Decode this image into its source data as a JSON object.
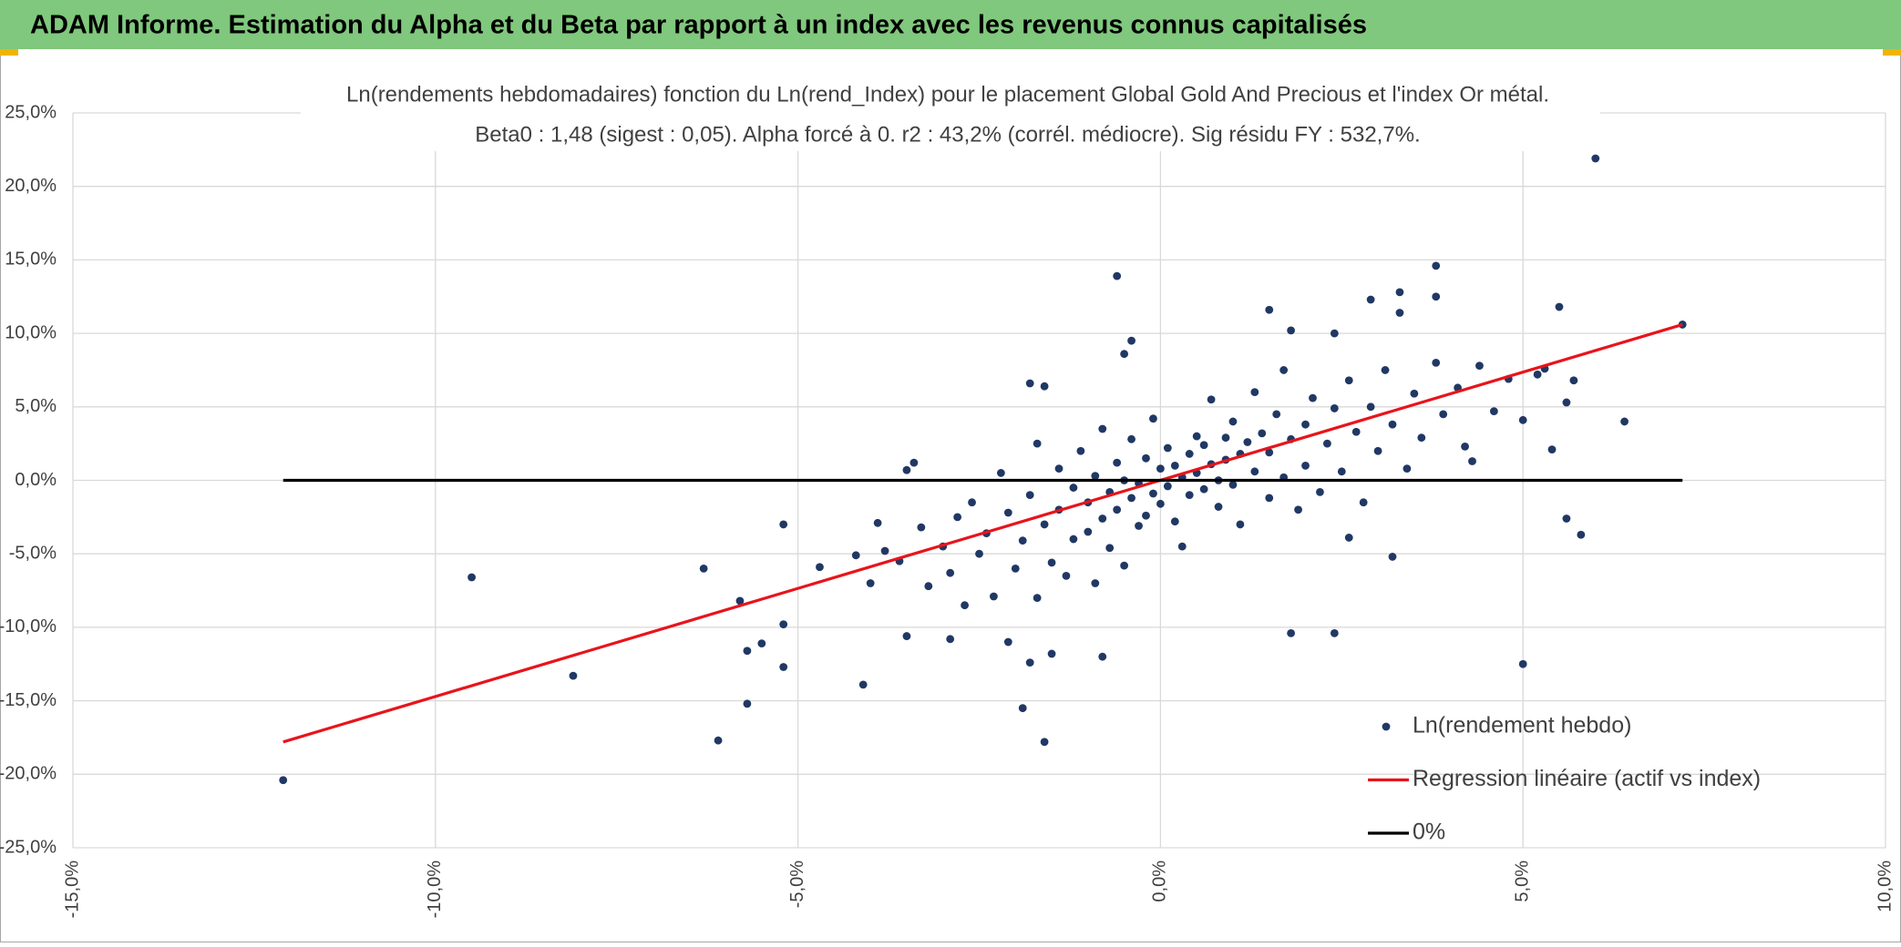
{
  "header": {
    "title": "ADAM Informe. Estimation du Alpha et du Beta par rapport à un index avec les revenus connus capitalisés"
  },
  "chart_data": {
    "type": "scatter",
    "title": "Ln(rendements hebdomadaires) fonction du Ln(rend_Index) pour le placement Global Gold And Precious  et l'index Or métal.",
    "subtitle": "Beta0 : 1,48 (sigest : 0,05). Alpha forcé à 0. r2 : 43,2% (corrél. médiocre). Sig résidu FY : 532,7%.",
    "xlim": [
      -15,
      10
    ],
    "xticks": [
      {
        "value": -15,
        "label": "-15,0%"
      },
      {
        "value": -10,
        "label": "-10,0%"
      },
      {
        "value": -5,
        "label": "-5,0%"
      },
      {
        "value": 0,
        "label": "0,0%"
      },
      {
        "value": 5,
        "label": "5,0%"
      },
      {
        "value": 10,
        "label": "10,0%"
      }
    ],
    "ylim": [
      -25,
      25
    ],
    "yticks": [
      {
        "value": -25,
        "label": "-25,0%"
      },
      {
        "value": -20,
        "label": "-20,0%"
      },
      {
        "value": -15,
        "label": "-15,0%"
      },
      {
        "value": -10,
        "label": "-10,0%"
      },
      {
        "value": -5,
        "label": "-5,0%"
      },
      {
        "value": 0,
        "label": "0,0%"
      },
      {
        "value": 5,
        "label": "5,0%"
      },
      {
        "value": 10,
        "label": "10,0%"
      },
      {
        "value": 15,
        "label": "15,0%"
      },
      {
        "value": 20,
        "label": "20,0%"
      },
      {
        "value": 25,
        "label": "25,0%"
      }
    ],
    "grid": true,
    "legend": "bottom-right",
    "series": [
      {
        "name": "Ln(rendement hebdo)",
        "color": "#203864",
        "style": "markers",
        "x": [
          -12.1,
          -9.5,
          -8.1,
          -6.3,
          -6.1,
          -5.8,
          -5.7,
          -5.7,
          -5.5,
          -5.2,
          -5.2,
          -5.2,
          -4.7,
          -4.1,
          -4.0,
          -3.5,
          -3.4,
          -3.5,
          -2.9,
          -2.1,
          -1.9,
          -1.8,
          -1.6,
          -1.8,
          -1.6,
          -1.5,
          -0.8,
          -0.6,
          -0.4,
          -0.5,
          1.5,
          1.8,
          2.4,
          2.4,
          1.8,
          2.9,
          3.3,
          3.3,
          3.8,
          3.8,
          5.5,
          6.0,
          7.2,
          6.4,
          5.8,
          5.6,
          5.0,
          5.4,
          4.3,
          3.2,
          2.6,
          -3.8,
          -3.6,
          -3.3,
          -3.2,
          -3.0,
          -2.9,
          -2.8,
          -2.7,
          -2.6,
          -2.5,
          -2.4,
          -2.3,
          -2.2,
          -2.1,
          -2.0,
          -1.9,
          -1.8,
          -1.7,
          -1.7,
          -1.6,
          -1.5,
          -1.4,
          -1.4,
          -1.3,
          -1.2,
          -1.2,
          -1.1,
          -1.0,
          -1.0,
          -0.9,
          -0.9,
          -0.8,
          -0.8,
          -0.7,
          -0.7,
          -0.6,
          -0.6,
          -0.5,
          -0.5,
          -0.4,
          -0.4,
          -0.3,
          -0.3,
          -0.2,
          -0.2,
          -0.1,
          -0.1,
          0.0,
          0.0,
          0.1,
          0.1,
          0.2,
          0.2,
          0.3,
          0.3,
          0.4,
          0.4,
          0.5,
          0.5,
          0.6,
          0.6,
          0.7,
          0.7,
          0.8,
          0.8,
          0.9,
          0.9,
          1.0,
          1.0,
          1.1,
          1.1,
          1.2,
          1.3,
          1.3,
          1.4,
          1.5,
          1.5,
          1.6,
          1.7,
          1.7,
          1.8,
          1.9,
          2.0,
          2.0,
          2.1,
          2.2,
          2.3,
          2.4,
          2.5,
          2.6,
          2.7,
          2.8,
          2.9,
          3.0,
          3.1,
          3.2,
          3.4,
          3.5,
          3.6,
          3.8,
          3.9,
          4.1,
          4.2,
          4.4,
          4.6,
          4.8,
          5.0,
          5.2,
          5.3,
          5.6,
          5.7,
          -4.2,
          -3.9
        ],
        "values": [
          -20.4,
          -6.6,
          -13.3,
          -6.0,
          -17.7,
          -8.2,
          -11.6,
          -15.2,
          -11.1,
          -9.8,
          -12.7,
          -3.0,
          -5.9,
          -13.9,
          -7.0,
          -10.6,
          1.2,
          0.7,
          -10.8,
          -11.0,
          -15.5,
          6.6,
          6.4,
          -12.4,
          -17.8,
          -11.8,
          -12.0,
          13.9,
          9.5,
          8.6,
          11.6,
          10.2,
          10.0,
          -10.4,
          -10.4,
          12.3,
          12.8,
          11.4,
          14.6,
          12.5,
          11.8,
          21.9,
          10.6,
          4.0,
          -3.7,
          -2.6,
          -12.5,
          2.1,
          1.3,
          -5.2,
          -3.9,
          -4.8,
          -5.5,
          -3.2,
          -7.2,
          -4.5,
          -6.3,
          -2.5,
          -8.5,
          -1.5,
          -5.0,
          -3.6,
          -7.9,
          0.5,
          -2.2,
          -6.0,
          -4.1,
          -1.0,
          -8.0,
          2.5,
          -3.0,
          -5.6,
          0.8,
          -2.0,
          -6.5,
          -0.5,
          -4.0,
          2.0,
          -1.5,
          -3.5,
          -7.0,
          0.3,
          -2.6,
          3.5,
          -0.8,
          -4.6,
          1.2,
          -2.0,
          -5.8,
          0.0,
          -1.2,
          2.8,
          -3.1,
          -0.2,
          1.5,
          -2.4,
          -0.9,
          4.2,
          -1.6,
          0.8,
          -0.4,
          2.2,
          -2.8,
          1.0,
          0.2,
          -4.5,
          1.8,
          -1.0,
          3.0,
          0.5,
          -0.6,
          2.4,
          1.1,
          5.5,
          -1.8,
          0.0,
          2.9,
          1.4,
          -0.3,
          4.0,
          1.8,
          -3.0,
          2.6,
          0.6,
          6.0,
          3.2,
          -1.2,
          1.9,
          4.5,
          0.2,
          7.5,
          2.8,
          -2.0,
          3.8,
          1.0,
          5.6,
          -0.8,
          2.5,
          4.9,
          0.6,
          6.8,
          3.3,
          -1.5,
          5.0,
          2.0,
          7.5,
          3.8,
          0.8,
          5.9,
          2.9,
          8.0,
          4.5,
          6.3,
          2.3,
          7.8,
          4.7,
          6.9,
          4.1,
          7.2,
          7.6,
          5.3,
          6.8,
          -5.1,
          -2.9
        ]
      },
      {
        "name": "Regression linéaire (actif vs index)",
        "color": "#e8141b",
        "style": "line",
        "x": [
          -12.1,
          7.2
        ],
        "values": [
          -17.8,
          10.6
        ]
      },
      {
        "name": "0%",
        "color": "#000000",
        "style": "line",
        "x": [
          -12.1,
          7.2
        ],
        "values": [
          0,
          0
        ]
      }
    ]
  }
}
